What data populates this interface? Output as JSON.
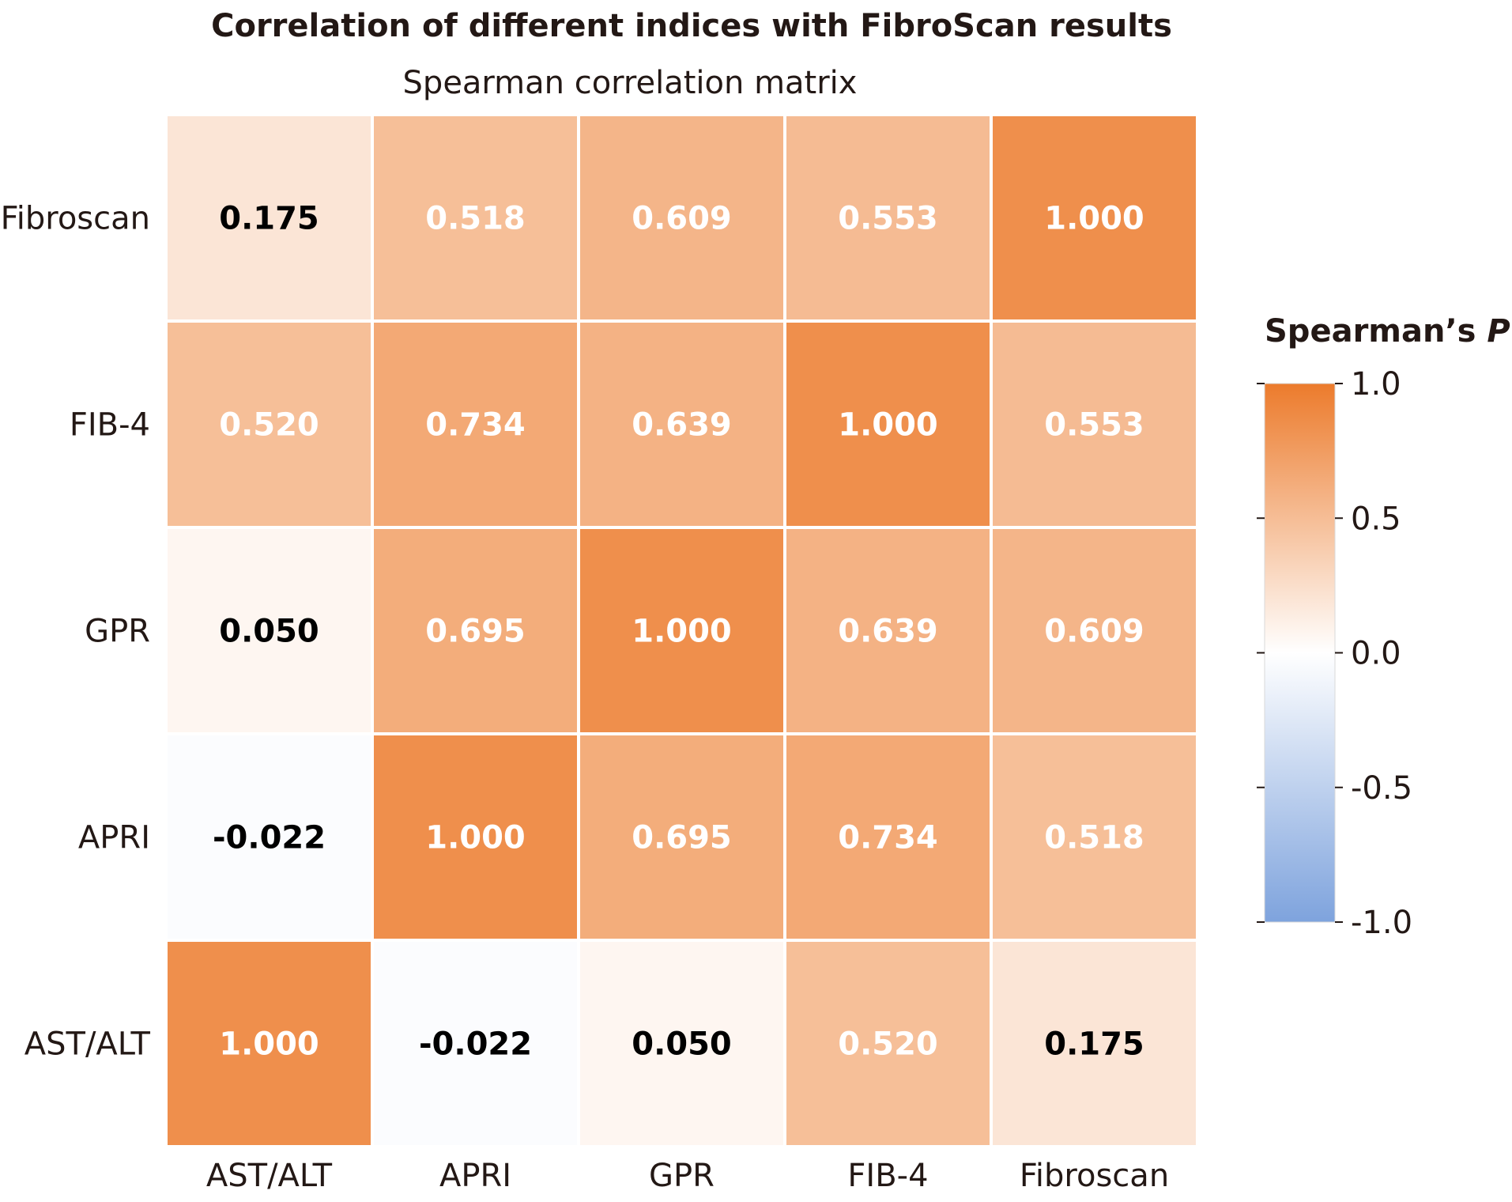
{
  "chart_data": {
    "type": "heatmap",
    "title": "Correlation of different indices with FibroScan results",
    "subtitle": "Spearman correlation matrix",
    "x_labels": [
      "AST/ALT",
      "APRI",
      "GPR",
      "FIB-4",
      "Fibroscan"
    ],
    "y_labels": [
      "Fibroscan",
      "FIB-4",
      "GPR",
      "APRI",
      "AST/ALT"
    ],
    "values": [
      [
        0.175,
        0.518,
        0.609,
        0.553,
        1.0
      ],
      [
        0.52,
        0.734,
        0.639,
        1.0,
        0.553
      ],
      [
        0.05,
        0.695,
        1.0,
        0.639,
        0.609
      ],
      [
        -0.022,
        1.0,
        0.695,
        0.734,
        0.518
      ],
      [
        1.0,
        -0.022,
        0.05,
        0.52,
        0.175
      ]
    ],
    "value_labels": [
      [
        "0.175",
        "0.518",
        "0.609",
        "0.553",
        "1.000"
      ],
      [
        "0.520",
        "0.734",
        "0.639",
        "1.000",
        "0.553"
      ],
      [
        "0.050",
        "0.695",
        "1.000",
        "0.639",
        "0.609"
      ],
      [
        "-0.022",
        "1.000",
        "0.695",
        "0.734",
        "0.518"
      ],
      [
        "1.000",
        "-0.022",
        "0.050",
        "0.520",
        "0.175"
      ]
    ],
    "colorbar": {
      "title_prefix": "Spearman’s ",
      "title_symbol": "P",
      "range": [
        -1.0,
        1.0
      ],
      "ticks": [
        1.0,
        0.5,
        0.0,
        -0.5,
        -1.0
      ],
      "tick_labels": [
        "1.0",
        "0.5",
        "0.0",
        "-0.5",
        "-1.0"
      ],
      "legend_placement": "right"
    },
    "colors": {
      "max": "#ec7b2c",
      "mid": "#ffffff",
      "min": "#7ea3dd",
      "text_light": "#ffffff",
      "text_dark": "#000000",
      "title": "#231815"
    }
  }
}
